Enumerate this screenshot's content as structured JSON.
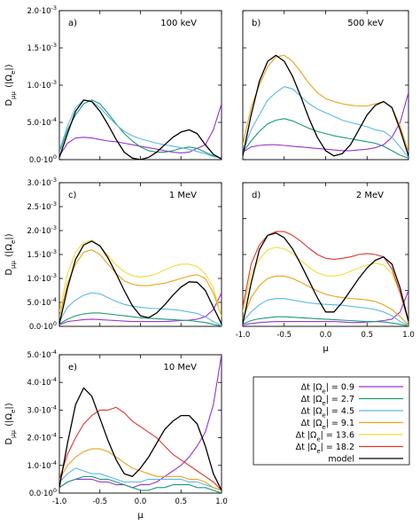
{
  "figure": {
    "y_axis_label": "D_μμ (|Ω_e|)",
    "x_axis_label": "μ",
    "x_ticks": [
      "-1.0",
      "-0.5",
      "0.0",
      "0.5",
      "1.0"
    ]
  },
  "legend": {
    "entries": [
      {
        "label": "Δt |Ω_e| = 0.9",
        "color": "#9b30d0"
      },
      {
        "label": "Δt |Ω_e| = 2.7",
        "color": "#1a9a78"
      },
      {
        "label": "Δt |Ω_e| = 4.5",
        "color": "#5ab8e8"
      },
      {
        "label": "Δt |Ω_e| = 9.1",
        "color": "#e8a21c"
      },
      {
        "label": "Δt |Ω_e| = 13.6",
        "color": "#f2dc3a"
      },
      {
        "label": "Δt |Ω_e| = 18.2",
        "color": "#e0352b"
      },
      {
        "label": "model",
        "color": "#000000"
      }
    ]
  },
  "chart_data": [
    {
      "type": "line",
      "panel": "a)",
      "annotation": "100 keV",
      "xlabel": "",
      "ylabel": "D_μμ (|Ω_e|)",
      "xlim": [
        -1,
        1
      ],
      "ylim": [
        0,
        0.002
      ],
      "ytick_labels": [
        "0.0·10^0",
        "5.0·10^-4",
        "1.0·10^-3",
        "1.5·10^-3",
        "2.0·10^-3"
      ],
      "x": [
        -1.0,
        -0.9,
        -0.8,
        -0.7,
        -0.6,
        -0.5,
        -0.4,
        -0.3,
        -0.2,
        -0.1,
        0.0,
        0.1,
        0.2,
        0.3,
        0.4,
        0.5,
        0.6,
        0.7,
        0.8,
        0.9,
        1.0
      ],
      "series": [
        {
          "name": "Δt |Ω_e| = 0.9",
          "color": "#9b30d0",
          "values": [
            5e-05,
            0.00022,
            0.00029,
            0.0003,
            0.00029,
            0.00027,
            0.00025,
            0.00024,
            0.00022,
            0.0002,
            0.00018,
            0.00016,
            0.00014,
            0.00012,
            0.0001,
            9e-05,
            0.0001,
            0.00015,
            0.0002,
            0.0004,
            0.00075
          ]
        },
        {
          "name": "Δt |Ω_e| = 2.7",
          "color": "#1a9a78",
          "values": [
            0.0001,
            0.0004,
            0.0006,
            0.00075,
            0.0008,
            0.00075,
            0.00062,
            0.00048,
            0.00035,
            0.00025,
            0.00017,
            0.00012,
            0.0001,
            0.0001,
            0.00012,
            0.00015,
            0.00017,
            0.00015,
            0.0001,
            5e-05,
            2e-05
          ]
        },
        {
          "name": "Δt |Ω_e| = 4.5",
          "color": "#5ab8e8",
          "values": [
            0.00012,
            0.00045,
            0.0007,
            0.0008,
            0.00078,
            0.0007,
            0.00058,
            0.00047,
            0.00038,
            0.00032,
            0.00028,
            0.00025,
            0.00022,
            0.0002,
            0.00018,
            0.00016,
            0.00014,
            0.00011,
            8e-05,
            4e-05,
            2e-05
          ]
        },
        {
          "name": "model",
          "color": "#000000",
          "values": [
            3e-05,
            0.00035,
            0.00065,
            0.0008,
            0.00078,
            0.00065,
            0.00047,
            0.00027,
            0.0001,
            2e-05,
            0.0,
            3e-05,
            0.0001,
            0.0002,
            0.0003,
            0.00037,
            0.0004,
            0.00035,
            0.0002,
            7e-05,
            1e-05
          ]
        }
      ]
    },
    {
      "type": "line",
      "panel": "b)",
      "annotation": "500 keV",
      "xlabel": "",
      "ylabel": "",
      "xlim": [
        -1,
        1
      ],
      "ylim": [
        0,
        0.002
      ],
      "ytick_labels": [],
      "x": [
        -1.0,
        -0.9,
        -0.8,
        -0.7,
        -0.6,
        -0.5,
        -0.4,
        -0.3,
        -0.2,
        -0.1,
        0.0,
        0.1,
        0.2,
        0.3,
        0.4,
        0.5,
        0.6,
        0.7,
        0.8,
        0.9,
        1.0
      ],
      "series": [
        {
          "name": "Δt |Ω_e| = 0.9",
          "color": "#9b30d0",
          "values": [
            0.0001,
            0.00017,
            0.00019,
            0.0002,
            0.0002,
            0.00019,
            0.00018,
            0.00017,
            0.00016,
            0.00015,
            0.00014,
            0.00013,
            0.00012,
            0.00012,
            0.00013,
            0.00014,
            0.00016,
            0.0002,
            0.0003,
            0.0005,
            0.0009
          ]
        },
        {
          "name": "Δt |Ω_e| = 2.7",
          "color": "#1a9a78",
          "values": [
            0.0001,
            0.00025,
            0.00038,
            0.00048,
            0.00053,
            0.00055,
            0.00052,
            0.00047,
            0.00042,
            0.00038,
            0.00035,
            0.00032,
            0.0003,
            0.00028,
            0.00026,
            0.00024,
            0.00022,
            0.00018,
            0.00012,
            6e-05,
            2e-05
          ]
        },
        {
          "name": "Δt |Ω_e| = 4.5",
          "color": "#5ab8e8",
          "values": [
            0.0001,
            0.0004,
            0.0006,
            0.0008,
            0.0009,
            0.00098,
            0.00095,
            0.00085,
            0.00075,
            0.00068,
            0.00063,
            0.00058,
            0.00053,
            0.0005,
            0.00047,
            0.00044,
            0.0004,
            0.00038,
            0.0003,
            0.00017,
            3e-05
          ]
        },
        {
          "name": "Δt |Ω_e| = 9.1",
          "color": "#e8a21c",
          "values": [
            0.0002,
            0.0007,
            0.001,
            0.00125,
            0.00138,
            0.0014,
            0.00132,
            0.00118,
            0.00102,
            0.0009,
            0.00082,
            0.00078,
            0.00075,
            0.00073,
            0.00072,
            0.00072,
            0.00075,
            0.00078,
            0.0007,
            0.00045,
            0.0001
          ]
        },
        {
          "name": "model",
          "color": "#000000",
          "values": [
            5e-05,
            0.0006,
            0.00105,
            0.00132,
            0.0014,
            0.00132,
            0.00112,
            0.00085,
            0.00055,
            0.0003,
            0.00012,
            5e-05,
            8e-05,
            0.0002,
            0.0004,
            0.0006,
            0.00073,
            0.00078,
            0.0007,
            0.0004,
            5e-05
          ]
        }
      ]
    },
    {
      "type": "line",
      "panel": "c)",
      "annotation": "1 MeV",
      "xlabel": "",
      "ylabel": "D_μμ (|Ω_e|)",
      "xlim": [
        -1,
        1
      ],
      "ylim": [
        0,
        0.003
      ],
      "ytick_labels": [
        "0.0·10^0",
        "5.0·10^-4",
        "1.0·10^-3",
        "1.5·10^-3",
        "2.0·10^-3",
        "2.5·10^-3",
        "3.0·10^-3"
      ],
      "x": [
        -1.0,
        -0.9,
        -0.8,
        -0.7,
        -0.6,
        -0.5,
        -0.4,
        -0.3,
        -0.2,
        -0.1,
        0.0,
        0.1,
        0.2,
        0.3,
        0.4,
        0.5,
        0.6,
        0.7,
        0.8,
        0.9,
        1.0
      ],
      "series": [
        {
          "name": "Δt |Ω_e| = 0.9",
          "color": "#9b30d0",
          "values": [
            3e-05,
            0.0001,
            0.00012,
            0.00014,
            0.00015,
            0.00014,
            0.00013,
            0.00012,
            0.00011,
            0.0001,
            0.0001,
            0.0001,
            0.0001,
            0.0001,
            0.00011,
            0.00012,
            0.00013,
            0.00015,
            0.0002,
            0.00035,
            0.0007
          ]
        },
        {
          "name": "Δt |Ω_e| = 2.7",
          "color": "#1a9a78",
          "values": [
            5e-05,
            0.00015,
            0.00022,
            0.00026,
            0.00028,
            0.00028,
            0.00026,
            0.00024,
            0.00022,
            0.0002,
            0.00018,
            0.00017,
            0.00016,
            0.00015,
            0.00014,
            0.00013,
            0.00012,
            0.0001,
            8e-05,
            4e-05,
            1e-05
          ]
        },
        {
          "name": "Δt |Ω_e| = 4.5",
          "color": "#5ab8e8",
          "values": [
            0.0001,
            0.0004,
            0.00055,
            0.00065,
            0.0007,
            0.00068,
            0.0006,
            0.00052,
            0.00046,
            0.00042,
            0.0004,
            0.00038,
            0.00037,
            0.00036,
            0.00035,
            0.00033,
            0.0003,
            0.00027,
            0.0002,
            0.0001,
            2e-05
          ]
        },
        {
          "name": "Δt |Ω_e| = 9.1",
          "color": "#e8a21c",
          "values": [
            0.0002,
            0.0009,
            0.0013,
            0.00155,
            0.0016,
            0.0015,
            0.0013,
            0.0011,
            0.00095,
            0.00088,
            0.00085,
            0.00085,
            0.00088,
            0.0009,
            0.00095,
            0.001,
            0.00105,
            0.00108,
            0.001,
            0.0007,
            0.0002
          ]
        },
        {
          "name": "Δt |Ω_e| = 13.6",
          "color": "#f2dc3a",
          "values": [
            0.0003,
            0.0011,
            0.00155,
            0.00175,
            0.0018,
            0.00168,
            0.00148,
            0.00128,
            0.00114,
            0.00106,
            0.00103,
            0.00105,
            0.0011,
            0.00118,
            0.00125,
            0.0013,
            0.0013,
            0.00125,
            0.0011,
            0.0008,
            0.0002
          ]
        },
        {
          "name": "model",
          "color": "#000000",
          "values": [
            5e-05,
            0.0008,
            0.0014,
            0.0017,
            0.00178,
            0.00168,
            0.00143,
            0.0011,
            0.00075,
            0.00043,
            0.00022,
            0.00018,
            0.00028,
            0.00045,
            0.00065,
            0.00082,
            0.00093,
            0.00092,
            0.00075,
            0.0004,
            5e-05
          ]
        }
      ]
    },
    {
      "type": "line",
      "panel": "d)",
      "annotation": "2 MeV",
      "xlabel": "μ",
      "ylabel": "",
      "xlim": [
        -1,
        1
      ],
      "ylim": [
        0,
        0.003
      ],
      "ytick_labels": [],
      "x": [
        -1.0,
        -0.9,
        -0.8,
        -0.7,
        -0.6,
        -0.5,
        -0.4,
        -0.3,
        -0.2,
        -0.1,
        0.0,
        0.1,
        0.2,
        0.3,
        0.4,
        0.5,
        0.6,
        0.7,
        0.8,
        0.9,
        1.0
      ],
      "series": [
        {
          "name": "Δt |Ω_e| = 0.9",
          "color": "#9b30d0",
          "values": [
            3e-05,
            6e-05,
            8e-05,
            9e-05,
            0.0001,
            0.0001,
            0.0001,
            0.0001,
            0.0001,
            0.0001,
            0.0001,
            0.0001,
            9e-05,
            8e-05,
            8e-05,
            9e-05,
            0.0001,
            0.00012,
            0.00015,
            0.0003,
            0.00075
          ]
        },
        {
          "name": "Δt |Ω_e| = 2.7",
          "color": "#1a9a78",
          "values": [
            5e-05,
            0.00012,
            0.00016,
            0.00018,
            0.0002,
            0.0002,
            0.00019,
            0.00018,
            0.00017,
            0.00016,
            0.00015,
            0.00014,
            0.00013,
            0.00012,
            0.00011,
            0.0001,
            0.0001,
            9e-05,
            7e-05,
            4e-05,
            1e-05
          ]
        },
        {
          "name": "Δt |Ω_e| = 4.5",
          "color": "#5ab8e8",
          "values": [
            0.0001,
            0.0003,
            0.00045,
            0.00055,
            0.00058,
            0.00058,
            0.00055,
            0.00052,
            0.00049,
            0.00047,
            0.00046,
            0.00045,
            0.00044,
            0.00042,
            0.0004,
            0.00038,
            0.00035,
            0.0003,
            0.00022,
            0.0001,
            2e-05
          ]
        },
        {
          "name": "Δt |Ω_e| = 9.1",
          "color": "#e8a21c",
          "values": [
            0.00015,
            0.0006,
            0.00085,
            0.001,
            0.00105,
            0.00105,
            0.001,
            0.00092,
            0.00083,
            0.00074,
            0.00067,
            0.00063,
            0.0006,
            0.00058,
            0.00057,
            0.00055,
            0.00052,
            0.00045,
            0.00035,
            0.0002,
            3e-05
          ]
        },
        {
          "name": "Δt |Ω_e| = 13.6",
          "color": "#f2dc3a",
          "values": [
            0.0003,
            0.0011,
            0.0014,
            0.0016,
            0.00165,
            0.00162,
            0.00152,
            0.00138,
            0.00123,
            0.00112,
            0.00106,
            0.00105,
            0.00108,
            0.00115,
            0.00122,
            0.00128,
            0.00132,
            0.00128,
            0.0011,
            0.0007,
            0.0001
          ]
        },
        {
          "name": "Δt |Ω_e| = 18.2",
          "color": "#e0352b",
          "values": [
            0.0004,
            0.0013,
            0.0017,
            0.0019,
            0.00198,
            0.00198,
            0.0019,
            0.00178,
            0.00163,
            0.0015,
            0.00142,
            0.0014,
            0.00142,
            0.00145,
            0.0015,
            0.00152,
            0.0015,
            0.00145,
            0.0012,
            0.0007,
            0.0001
          ]
        },
        {
          "name": "model",
          "color": "#000000",
          "values": [
            5e-05,
            0.0009,
            0.0016,
            0.0019,
            0.00195,
            0.00185,
            0.00162,
            0.0013,
            0.00095,
            0.0006,
            0.0003,
            0.0003,
            0.0005,
            0.00075,
            0.001,
            0.00122,
            0.00138,
            0.00145,
            0.0013,
            0.0008,
            0.0001
          ]
        }
      ]
    },
    {
      "type": "line",
      "panel": "e)",
      "annotation": "10 MeV",
      "xlabel": "μ",
      "ylabel": "D_μμ (|Ω_e|)",
      "xlim": [
        -1,
        1
      ],
      "ylim": [
        0,
        0.0005
      ],
      "ytick_labels": [
        "0.0·10^0",
        "1.0·10^-4",
        "2.0·10^-4",
        "3.0·10^-4",
        "4.0·10^-4",
        "5.0·10^-4"
      ],
      "x": [
        -1.0,
        -0.9,
        -0.8,
        -0.7,
        -0.6,
        -0.5,
        -0.4,
        -0.3,
        -0.2,
        -0.1,
        0.0,
        0.1,
        0.2,
        0.3,
        0.4,
        0.5,
        0.6,
        0.7,
        0.8,
        0.9,
        1.0
      ],
      "series": [
        {
          "name": "Δt |Ω_e| = 0.9",
          "color": "#9b30d0",
          "values": [
            2e-05,
            4e-05,
            5e-05,
            5e-05,
            5e-05,
            4e-05,
            4e-05,
            3e-05,
            3e-05,
            2e-05,
            3e-05,
            3e-05,
            4e-05,
            6e-05,
            8e-05,
            0.0001,
            0.00013,
            0.00017,
            0.00022,
            0.00032,
            0.0005
          ]
        },
        {
          "name": "Δt |Ω_e| = 2.7",
          "color": "#1a9a78",
          "values": [
            2e-05,
            4e-05,
            5e-05,
            6e-05,
            6e-05,
            5e-05,
            5e-05,
            4e-05,
            3e-05,
            2e-05,
            1e-05,
            1e-05,
            2e-05,
            2e-05,
            3e-05,
            3e-05,
            3e-05,
            2e-05,
            2e-05,
            1e-05,
            0.0
          ]
        },
        {
          "name": "Δt |Ω_e| = 4.5",
          "color": "#5ab8e8",
          "values": [
            4e-05,
            7e-05,
            9e-05,
            8e-05,
            7e-05,
            7e-05,
            6e-05,
            5e-05,
            4e-05,
            4e-05,
            4e-05,
            5e-05,
            5e-05,
            5e-05,
            5e-05,
            5e-05,
            4e-05,
            4e-05,
            3e-05,
            2e-05,
            1e-05
          ]
        },
        {
          "name": "Δt |Ω_e| = 9.1",
          "color": "#e8a21c",
          "values": [
            5e-05,
            0.0001,
            0.00013,
            0.00015,
            0.00016,
            0.00016,
            0.00015,
            0.00013,
            0.00011,
            9e-05,
            8e-05,
            7e-05,
            6e-05,
            6e-05,
            6e-05,
            6e-05,
            5e-05,
            5e-05,
            4e-05,
            2e-05,
            1e-05
          ]
        },
        {
          "name": "Δt |Ω_e| = 18.2",
          "color": "#e0352b",
          "values": [
            5e-05,
            0.00014,
            0.0002,
            0.00025,
            0.00028,
            0.0003,
            0.0003,
            0.00031,
            0.00029,
            0.00026,
            0.00024,
            0.00022,
            0.0002,
            0.00017,
            0.00014,
            0.00012,
            0.0001,
            8e-05,
            6e-05,
            4e-05,
            1e-05
          ]
        },
        {
          "name": "model",
          "color": "#000000",
          "values": [
            2e-05,
            0.00018,
            0.00032,
            0.00038,
            0.00035,
            0.00027,
            0.00019,
            0.00012,
            7e-05,
            6e-05,
            9e-05,
            0.00013,
            0.00018,
            0.00023,
            0.00026,
            0.00028,
            0.00028,
            0.00025,
            0.00017,
            7e-05,
            1e-05
          ]
        }
      ]
    }
  ]
}
